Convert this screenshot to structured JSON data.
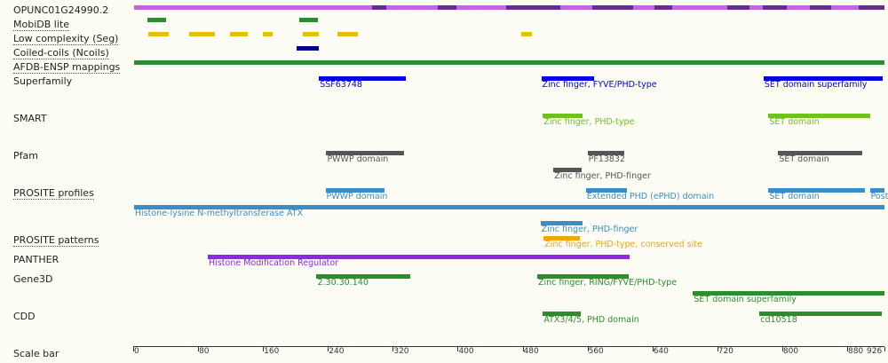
{
  "protein_length": 926,
  "rows": [
    {
      "id": "protein",
      "label": "OPUNC01G24990.2",
      "dotted": false
    },
    {
      "id": "mobidb",
      "label": "MobiDB lite",
      "dotted": true
    },
    {
      "id": "seg",
      "label": "Low complexity (Seg)",
      "dotted": true
    },
    {
      "id": "ncoils",
      "label": "Coiled-coils (Ncoils)",
      "dotted": true
    },
    {
      "id": "afdb",
      "label": "AFDB-ENSP mappings",
      "dotted": true
    },
    {
      "id": "superfamily",
      "label": "Superfamily",
      "dotted": false
    },
    {
      "id": "smart",
      "label": "SMART",
      "dotted": false
    },
    {
      "id": "pfam",
      "label": "Pfam",
      "dotted": false
    },
    {
      "id": "prosite_profiles",
      "label": "PROSITE profiles",
      "dotted": true
    },
    {
      "id": "prosite_patterns",
      "label": "PROSITE patterns",
      "dotted": true
    },
    {
      "id": "panther",
      "label": "PANTHER",
      "dotted": false
    },
    {
      "id": "gene3d",
      "label": "Gene3D",
      "dotted": false
    },
    {
      "id": "cdd",
      "label": "CDD",
      "dotted": false
    },
    {
      "id": "scale",
      "label": "Scale bar",
      "dotted": false
    }
  ],
  "features": [
    {
      "row": "protein",
      "start": 1,
      "end": 926,
      "color": "#c664dc",
      "label": ""
    },
    {
      "row": "protein",
      "start": 294,
      "end": 312,
      "color": "#6a2d84",
      "label": ""
    },
    {
      "row": "protein",
      "start": 375,
      "end": 398,
      "color": "#6a2d84",
      "label": ""
    },
    {
      "row": "protein",
      "start": 460,
      "end": 490,
      "color": "#6a2d84",
      "label": ""
    },
    {
      "row": "protein",
      "start": 490,
      "end": 526,
      "color": "#6a2d84",
      "label": ""
    },
    {
      "row": "protein",
      "start": 566,
      "end": 616,
      "color": "#6a2d84",
      "label": ""
    },
    {
      "row": "protein",
      "start": 642,
      "end": 664,
      "color": "#6a2d84",
      "label": ""
    },
    {
      "row": "protein",
      "start": 732,
      "end": 760,
      "color": "#6a2d84",
      "label": ""
    },
    {
      "row": "protein",
      "start": 776,
      "end": 806,
      "color": "#6a2d84",
      "label": ""
    },
    {
      "row": "protein",
      "start": 834,
      "end": 860,
      "color": "#6a2d84",
      "label": ""
    },
    {
      "row": "protein",
      "start": 894,
      "end": 926,
      "color": "#6a2d84",
      "label": ""
    },
    {
      "row": "mobidb",
      "start": 18,
      "end": 41,
      "color": "#2e8b2e",
      "label": ""
    },
    {
      "row": "mobidb",
      "start": 205,
      "end": 228,
      "color": "#2e8b2e",
      "label": ""
    },
    {
      "row": "seg",
      "start": 19,
      "end": 44,
      "color": "#e6c000",
      "label": ""
    },
    {
      "row": "seg",
      "start": 69,
      "end": 101,
      "color": "#e6c000",
      "label": ""
    },
    {
      "row": "seg",
      "start": 119,
      "end": 141,
      "color": "#e6c000",
      "label": ""
    },
    {
      "row": "seg",
      "start": 160,
      "end": 172,
      "color": "#e6c000",
      "label": ""
    },
    {
      "row": "seg",
      "start": 209,
      "end": 229,
      "color": "#e6c000",
      "label": ""
    },
    {
      "row": "seg",
      "start": 252,
      "end": 277,
      "color": "#e6c000",
      "label": ""
    },
    {
      "row": "seg",
      "start": 478,
      "end": 492,
      "color": "#e6c000",
      "label": ""
    },
    {
      "row": "ncoils",
      "start": 201,
      "end": 229,
      "color": "#00008b",
      "label": ""
    },
    {
      "row": "afdb",
      "start": 1,
      "end": 926,
      "color": "#2e8b2e",
      "label": ""
    },
    {
      "row": "superfamily",
      "start": 229,
      "end": 336,
      "color": "#0000e6",
      "label": "SSF63748"
    },
    {
      "row": "superfamily",
      "start": 503,
      "end": 568,
      "color": "#0000e6",
      "label": "Zinc finger, FYVE/PHD-type"
    },
    {
      "row": "superfamily",
      "start": 777,
      "end": 924,
      "color": "#0000e6",
      "label": "SET domain superfamily"
    },
    {
      "row": "smart",
      "start": 505,
      "end": 554,
      "color": "#6ec21c",
      "label": "Zinc finger, PHD-type"
    },
    {
      "row": "smart",
      "start": 783,
      "end": 908,
      "color": "#6ec21c",
      "label": "SET domain"
    },
    {
      "row": "pfam",
      "start": 238,
      "end": 334,
      "color": "#555555",
      "label": "PWWP domain"
    },
    {
      "row": "pfam",
      "start": 560,
      "end": 605,
      "color": "#555555",
      "label": "PF13832"
    },
    {
      "row": "pfam",
      "start": 518,
      "end": 553,
      "color": "#555555",
      "label": "Zinc finger, PHD-finger",
      "sub": 1
    },
    {
      "row": "pfam",
      "start": 795,
      "end": 899,
      "color": "#555555",
      "label": "SET domain"
    },
    {
      "row": "prosite_profiles",
      "start": 237,
      "end": 310,
      "color": "#3a8dc8",
      "label": "PWWP domain"
    },
    {
      "row": "prosite_profiles",
      "start": 558,
      "end": 609,
      "color": "#3a8dc8",
      "label": "Extended PHD (ePHD) domain"
    },
    {
      "row": "prosite_profiles",
      "start": 783,
      "end": 902,
      "color": "#3a8dc8",
      "label": "SET domain"
    },
    {
      "row": "prosite_profiles",
      "start": 908,
      "end": 926,
      "color": "#3a8dc8",
      "label": "Post"
    },
    {
      "row": "prosite_profiles",
      "start": 1,
      "end": 926,
      "color": "#3a8dc8",
      "label": "Histone-lysine N-methyltransferase ATX",
      "sub": 1
    },
    {
      "row": "prosite_profiles",
      "start": 502,
      "end": 554,
      "color": "#3a8dc8",
      "label": "Zinc finger, PHD-finger",
      "sub": 2
    },
    {
      "row": "prosite_patterns",
      "start": 506,
      "end": 551,
      "color": "#f0a800",
      "label": "Zinc finger, PHD-type, conserved site"
    },
    {
      "row": "panther",
      "start": 92,
      "end": 612,
      "color": "#8a2be2",
      "label": "Histone Modification Regulator"
    },
    {
      "row": "gene3d",
      "start": 226,
      "end": 342,
      "color": "#2e8b2e",
      "label": "2.30.30.140"
    },
    {
      "row": "gene3d",
      "start": 498,
      "end": 611,
      "color": "#2e8b2e",
      "label": "Zinc finger, RING/FYVE/PHD-type"
    },
    {
      "row": "gene3d",
      "start": 690,
      "end": 926,
      "color": "#2e8b2e",
      "label": "SET domain superfamily",
      "sub": 1
    },
    {
      "row": "cdd",
      "start": 505,
      "end": 552,
      "color": "#2e8b2e",
      "label": "ATX3/4/5, PHD domain"
    },
    {
      "row": "cdd",
      "start": 772,
      "end": 923,
      "color": "#2e8b2e",
      "label": "cd10518"
    }
  ],
  "scale": {
    "ticks": [
      0,
      80,
      160,
      240,
      320,
      400,
      480,
      560,
      640,
      720,
      800,
      880,
      926
    ]
  }
}
